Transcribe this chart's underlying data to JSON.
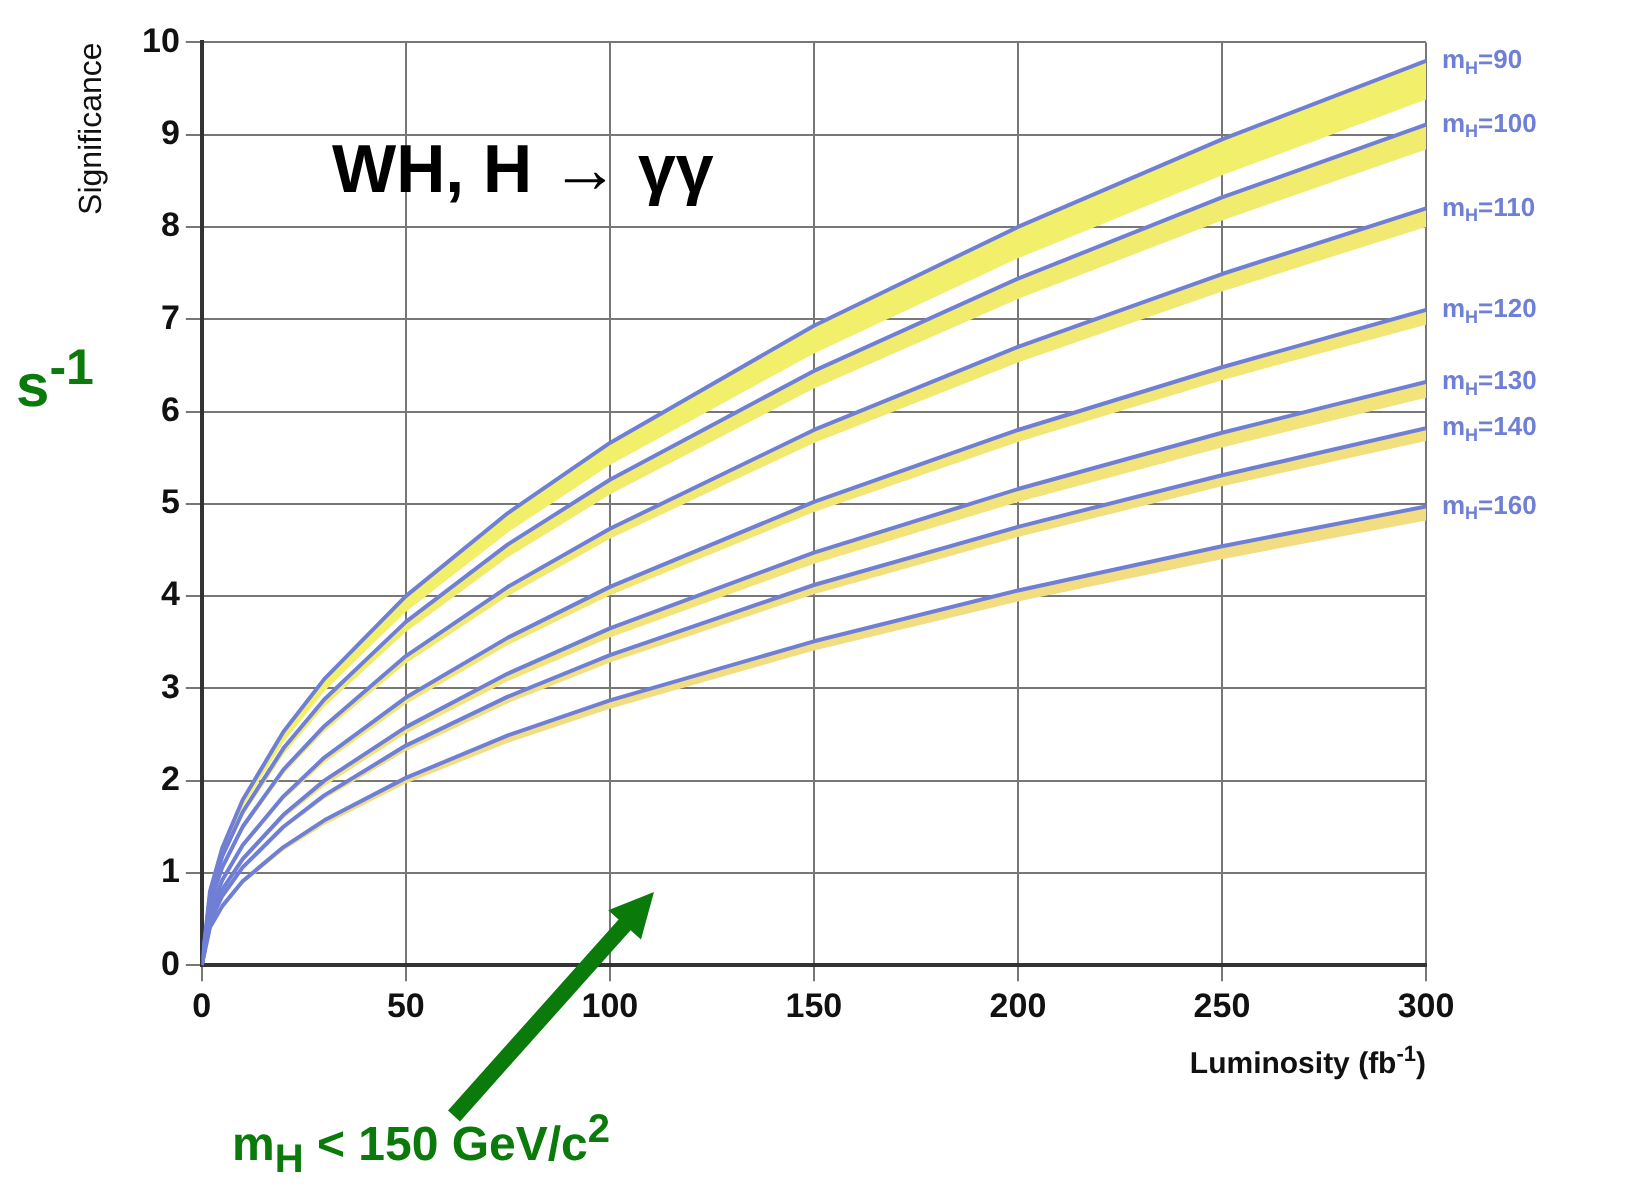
{
  "chart_data": {
    "type": "line",
    "xlabel": "Luminosity (fb$^{-1}$)",
    "ylabel": "Significance",
    "annotations": [
      "WH, H → γγ",
      "s$^{-1}$",
      "m$_{H}$ < 150 GeV/c$^{2}$"
    ],
    "x": [
      0,
      2,
      5,
      10,
      20,
      30,
      50,
      75,
      100,
      150,
      200,
      250,
      300
    ],
    "series": [
      {
        "name": "m$_{H}$=90",
        "color": "#6f7fd6",
        "values": [
          0,
          0.8,
          1.27,
          1.79,
          2.53,
          3.1,
          4.0,
          4.9,
          5.66,
          6.93,
          8.0,
          8.95,
          9.8
        ],
        "lower": [
          0,
          0.77,
          1.21,
          1.71,
          2.42,
          2.97,
          3.83,
          4.69,
          5.42,
          6.63,
          7.66,
          8.56,
          9.38
        ],
        "upper": [
          0,
          0.8,
          1.27,
          1.79,
          2.53,
          3.1,
          4.0,
          4.9,
          5.66,
          6.93,
          8.0,
          8.95,
          9.8
        ]
      },
      {
        "name": "m$_{H}$=100",
        "color": "#6f7fd6",
        "values": [
          0,
          0.74,
          1.18,
          1.66,
          2.35,
          2.88,
          3.72,
          4.56,
          5.26,
          6.44,
          7.44,
          8.32,
          9.11
        ],
        "lower": [
          0,
          0.72,
          1.14,
          1.61,
          2.28,
          2.8,
          3.61,
          4.42,
          5.1,
          6.25,
          7.22,
          8.07,
          8.84
        ],
        "upper": [
          0,
          0.74,
          1.18,
          1.66,
          2.35,
          2.88,
          3.72,
          4.56,
          5.26,
          6.44,
          7.44,
          8.32,
          9.11
        ]
      },
      {
        "name": "m$_{H}$=110",
        "color": "#6f7fd6",
        "values": [
          0,
          0.67,
          1.06,
          1.5,
          2.12,
          2.59,
          3.35,
          4.1,
          4.73,
          5.8,
          6.7,
          7.49,
          8.2
        ],
        "lower": [
          0,
          0.65,
          1.03,
          1.46,
          2.07,
          2.53,
          3.27,
          4.0,
          4.62,
          5.66,
          6.53,
          7.3,
          8.0
        ],
        "upper": [
          0,
          0.67,
          1.06,
          1.5,
          2.12,
          2.59,
          3.35,
          4.1,
          4.73,
          5.8,
          6.7,
          7.49,
          8.2
        ]
      },
      {
        "name": "m$_{H}$=120",
        "color": "#6f7fd6",
        "values": [
          0,
          0.58,
          0.92,
          1.3,
          1.83,
          2.25,
          2.9,
          3.55,
          4.1,
          5.02,
          5.8,
          6.48,
          7.1
        ],
        "lower": [
          0,
          0.57,
          0.9,
          1.27,
          1.79,
          2.19,
          2.83,
          3.47,
          4.01,
          4.91,
          5.67,
          6.34,
          6.94
        ],
        "upper": [
          0,
          0.58,
          0.92,
          1.3,
          1.83,
          2.25,
          2.9,
          3.55,
          4.1,
          5.02,
          5.8,
          6.48,
          7.1
        ]
      },
      {
        "name": "m$_{H}$=130",
        "color": "#6f7fd6",
        "values": [
          0,
          0.52,
          0.82,
          1.15,
          1.63,
          2.0,
          2.58,
          3.16,
          3.65,
          4.47,
          5.16,
          5.77,
          6.32
        ],
        "lower": [
          0,
          0.5,
          0.79,
          1.12,
          1.59,
          1.94,
          2.51,
          3.08,
          3.55,
          4.35,
          5.02,
          5.61,
          6.15
        ],
        "upper": [
          0,
          0.52,
          0.82,
          1.15,
          1.63,
          2.0,
          2.58,
          3.16,
          3.65,
          4.47,
          5.16,
          5.77,
          6.32
        ]
      },
      {
        "name": "m$_{H}$=140",
        "color": "#6f7fd6",
        "values": [
          0,
          0.47,
          0.75,
          1.06,
          1.5,
          1.84,
          2.38,
          2.91,
          3.36,
          4.12,
          4.75,
          5.31,
          5.82
        ],
        "lower": [
          0,
          0.46,
          0.73,
          1.04,
          1.47,
          1.8,
          2.32,
          2.84,
          3.28,
          4.02,
          4.64,
          5.19,
          5.68
        ],
        "upper": [
          0,
          0.47,
          0.75,
          1.06,
          1.5,
          1.84,
          2.38,
          2.91,
          3.36,
          4.12,
          4.75,
          5.31,
          5.82
        ]
      },
      {
        "name": "m$_{H}$=160",
        "color": "#6f7fd6",
        "values": [
          0,
          0.41,
          0.64,
          0.91,
          1.28,
          1.57,
          2.03,
          2.49,
          2.87,
          3.51,
          4.06,
          4.54,
          4.97
        ],
        "lower": [
          0,
          0.39,
          0.62,
          0.88,
          1.24,
          1.52,
          1.97,
          2.41,
          2.78,
          3.41,
          3.94,
          4.4,
          4.82
        ],
        "upper": [
          0,
          0.41,
          0.64,
          0.91,
          1.28,
          1.57,
          2.03,
          2.49,
          2.87,
          3.51,
          4.06,
          4.54,
          4.97
        ]
      }
    ],
    "xlim": [
      0,
      300
    ],
    "xticks": [
      0,
      50,
      100,
      150,
      200,
      250,
      300
    ],
    "ylim": [
      0,
      10
    ],
    "yticks": [
      0,
      1,
      2,
      3,
      4,
      5,
      6,
      7,
      8,
      9,
      10
    ],
    "grid": true,
    "legend": false,
    "marker": "none",
    "line_style": "solid"
  }
}
